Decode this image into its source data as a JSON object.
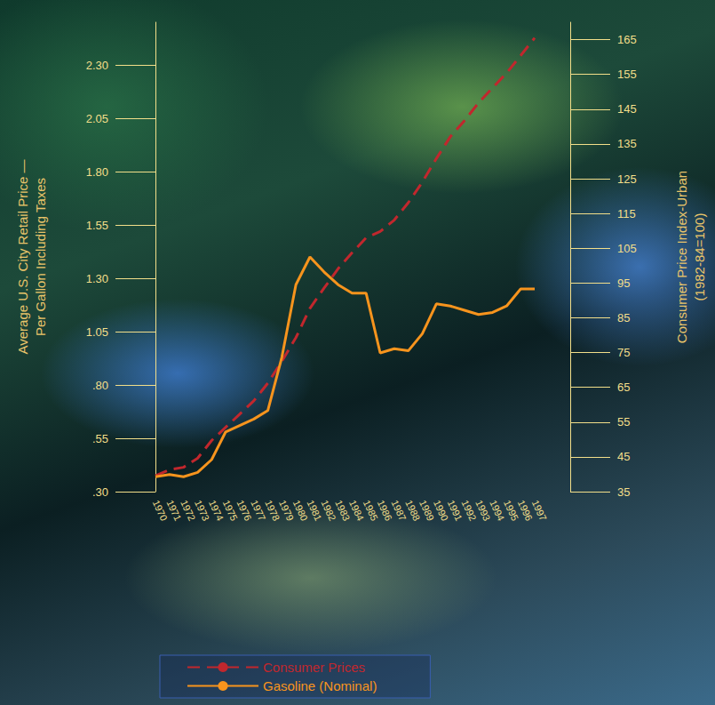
{
  "chart_data": {
    "type": "line",
    "categories": [
      "1970",
      "1971",
      "1972",
      "1973",
      "1974",
      "1975",
      "1976",
      "1977",
      "1978",
      "1979",
      "1980",
      "1981",
      "1982",
      "1983",
      "1984",
      "1985",
      "1986",
      "1987",
      "1988",
      "1989",
      "1990",
      "1991",
      "1992",
      "1993",
      "1994",
      "1995",
      "1996",
      "1997"
    ],
    "series": [
      {
        "name": "Consumer Prices",
        "color": "#c1272d",
        "line_style": "dashed",
        "axis": "y2",
        "values": [
          39.6,
          41.3,
          42,
          44.6,
          49.7,
          53.5,
          57.3,
          61.1,
          66.2,
          72.5,
          79.3,
          87.7,
          93.5,
          99.1,
          103.7,
          108,
          109.8,
          113.1,
          118.1,
          124,
          130.8,
          137.1,
          141.7,
          146.8,
          151.1,
          155.4,
          160.4,
          165.5
        ]
      },
      {
        "name": "Gasoline (Nominal)",
        "color": "#f7941d",
        "line_style": "solid",
        "values": [
          0.37,
          0.38,
          0.37,
          0.39,
          0.45,
          0.58,
          0.61,
          0.64,
          0.68,
          0.93,
          1.27,
          1.4,
          1.33,
          1.27,
          1.23,
          1.23,
          0.95,
          0.97,
          0.96,
          1.04,
          1.18,
          1.17,
          1.15,
          1.13,
          1.14,
          1.17,
          1.25,
          1.25
        ]
      }
    ],
    "y_label": "Average U.S. City Retail Price — Per Gallon Including Taxes",
    "y2_label": "Consumer Price Index-Urban (1982-84=100)",
    "ylim": [
      0.3,
      2.5
    ],
    "yticks": [
      {
        "value": 0.3,
        "label": ".30"
      },
      {
        "value": 0.55,
        "label": ".55"
      },
      {
        "value": 0.8,
        "label": ".80"
      },
      1.05,
      {
        "value": 1.3,
        "label": "1.30"
      },
      1.55,
      {
        "value": 1.8,
        "label": "1.80"
      },
      2.05,
      {
        "value": 2.3,
        "label": "2.30"
      }
    ],
    "y2lim": [
      35,
      170
    ],
    "y2ticks": [
      35,
      45,
      55,
      65,
      75,
      85,
      95,
      105,
      115,
      125,
      135,
      145,
      155,
      165
    ],
    "grid": false,
    "legend": "bottom"
  }
}
